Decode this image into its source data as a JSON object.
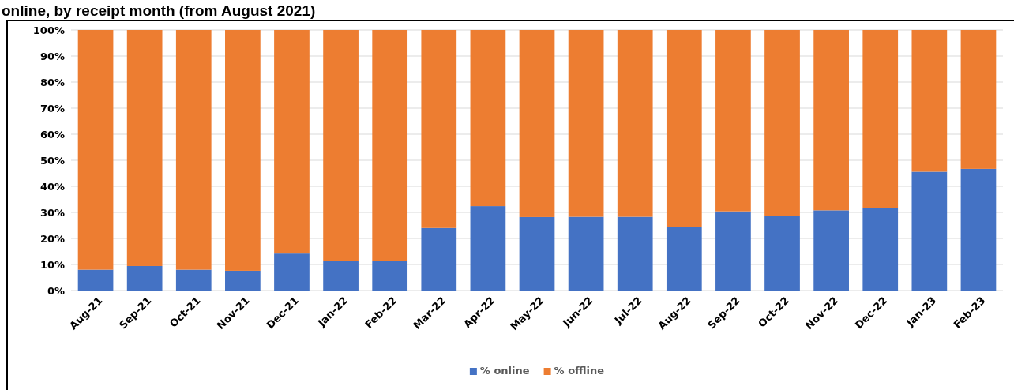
{
  "chart_data": {
    "type": "bar",
    "title": "online, by receipt month (from August 2021)",
    "categories": [
      "Aug-21",
      "Sep-21",
      "Oct-21",
      "Nov-21",
      "Dec-21",
      "Jan-22",
      "Feb-22",
      "Mar-22",
      "Apr-22",
      "May-22",
      "Jun-22",
      "Jul-22",
      "Aug-22",
      "Sep-22",
      "Oct-22",
      "Nov-22",
      "Dec-22",
      "Jan-23",
      "Feb-23"
    ],
    "stacked": true,
    "series": [
      {
        "name": "% online",
        "color": "#4472c4",
        "values": [
          8,
          9.4,
          8,
          7.6,
          14.2,
          11.5,
          11.3,
          24,
          32.4,
          28.2,
          28.3,
          28.3,
          24.3,
          30.4,
          28.5,
          30.8,
          31.7,
          45.6,
          46.7
        ]
      },
      {
        "name": "% offline",
        "color": "#ed7d31",
        "values": [
          92,
          90.6,
          92,
          92.4,
          85.8,
          88.5,
          88.7,
          76,
          67.6,
          71.8,
          71.7,
          71.7,
          75.7,
          69.6,
          71.5,
          69.2,
          68.3,
          54.4,
          53.3
        ]
      }
    ],
    "ylim": [
      0,
      100
    ],
    "yticks": [
      {
        "value": 0,
        "label": "0%"
      },
      {
        "value": 10,
        "label": "10%"
      },
      {
        "value": 20,
        "label": "20%"
      },
      {
        "value": 30,
        "label": "30%"
      },
      {
        "value": 40,
        "label": "40%"
      },
      {
        "value": 50,
        "label": "50%"
      },
      {
        "value": 60,
        "label": "60%"
      },
      {
        "value": 70,
        "label": "70%"
      },
      {
        "value": 80,
        "label": "80%"
      },
      {
        "value": 90,
        "label": "90%"
      },
      {
        "value": 100,
        "label": "100%"
      }
    ],
    "grid": "y",
    "legend": "bottom"
  }
}
